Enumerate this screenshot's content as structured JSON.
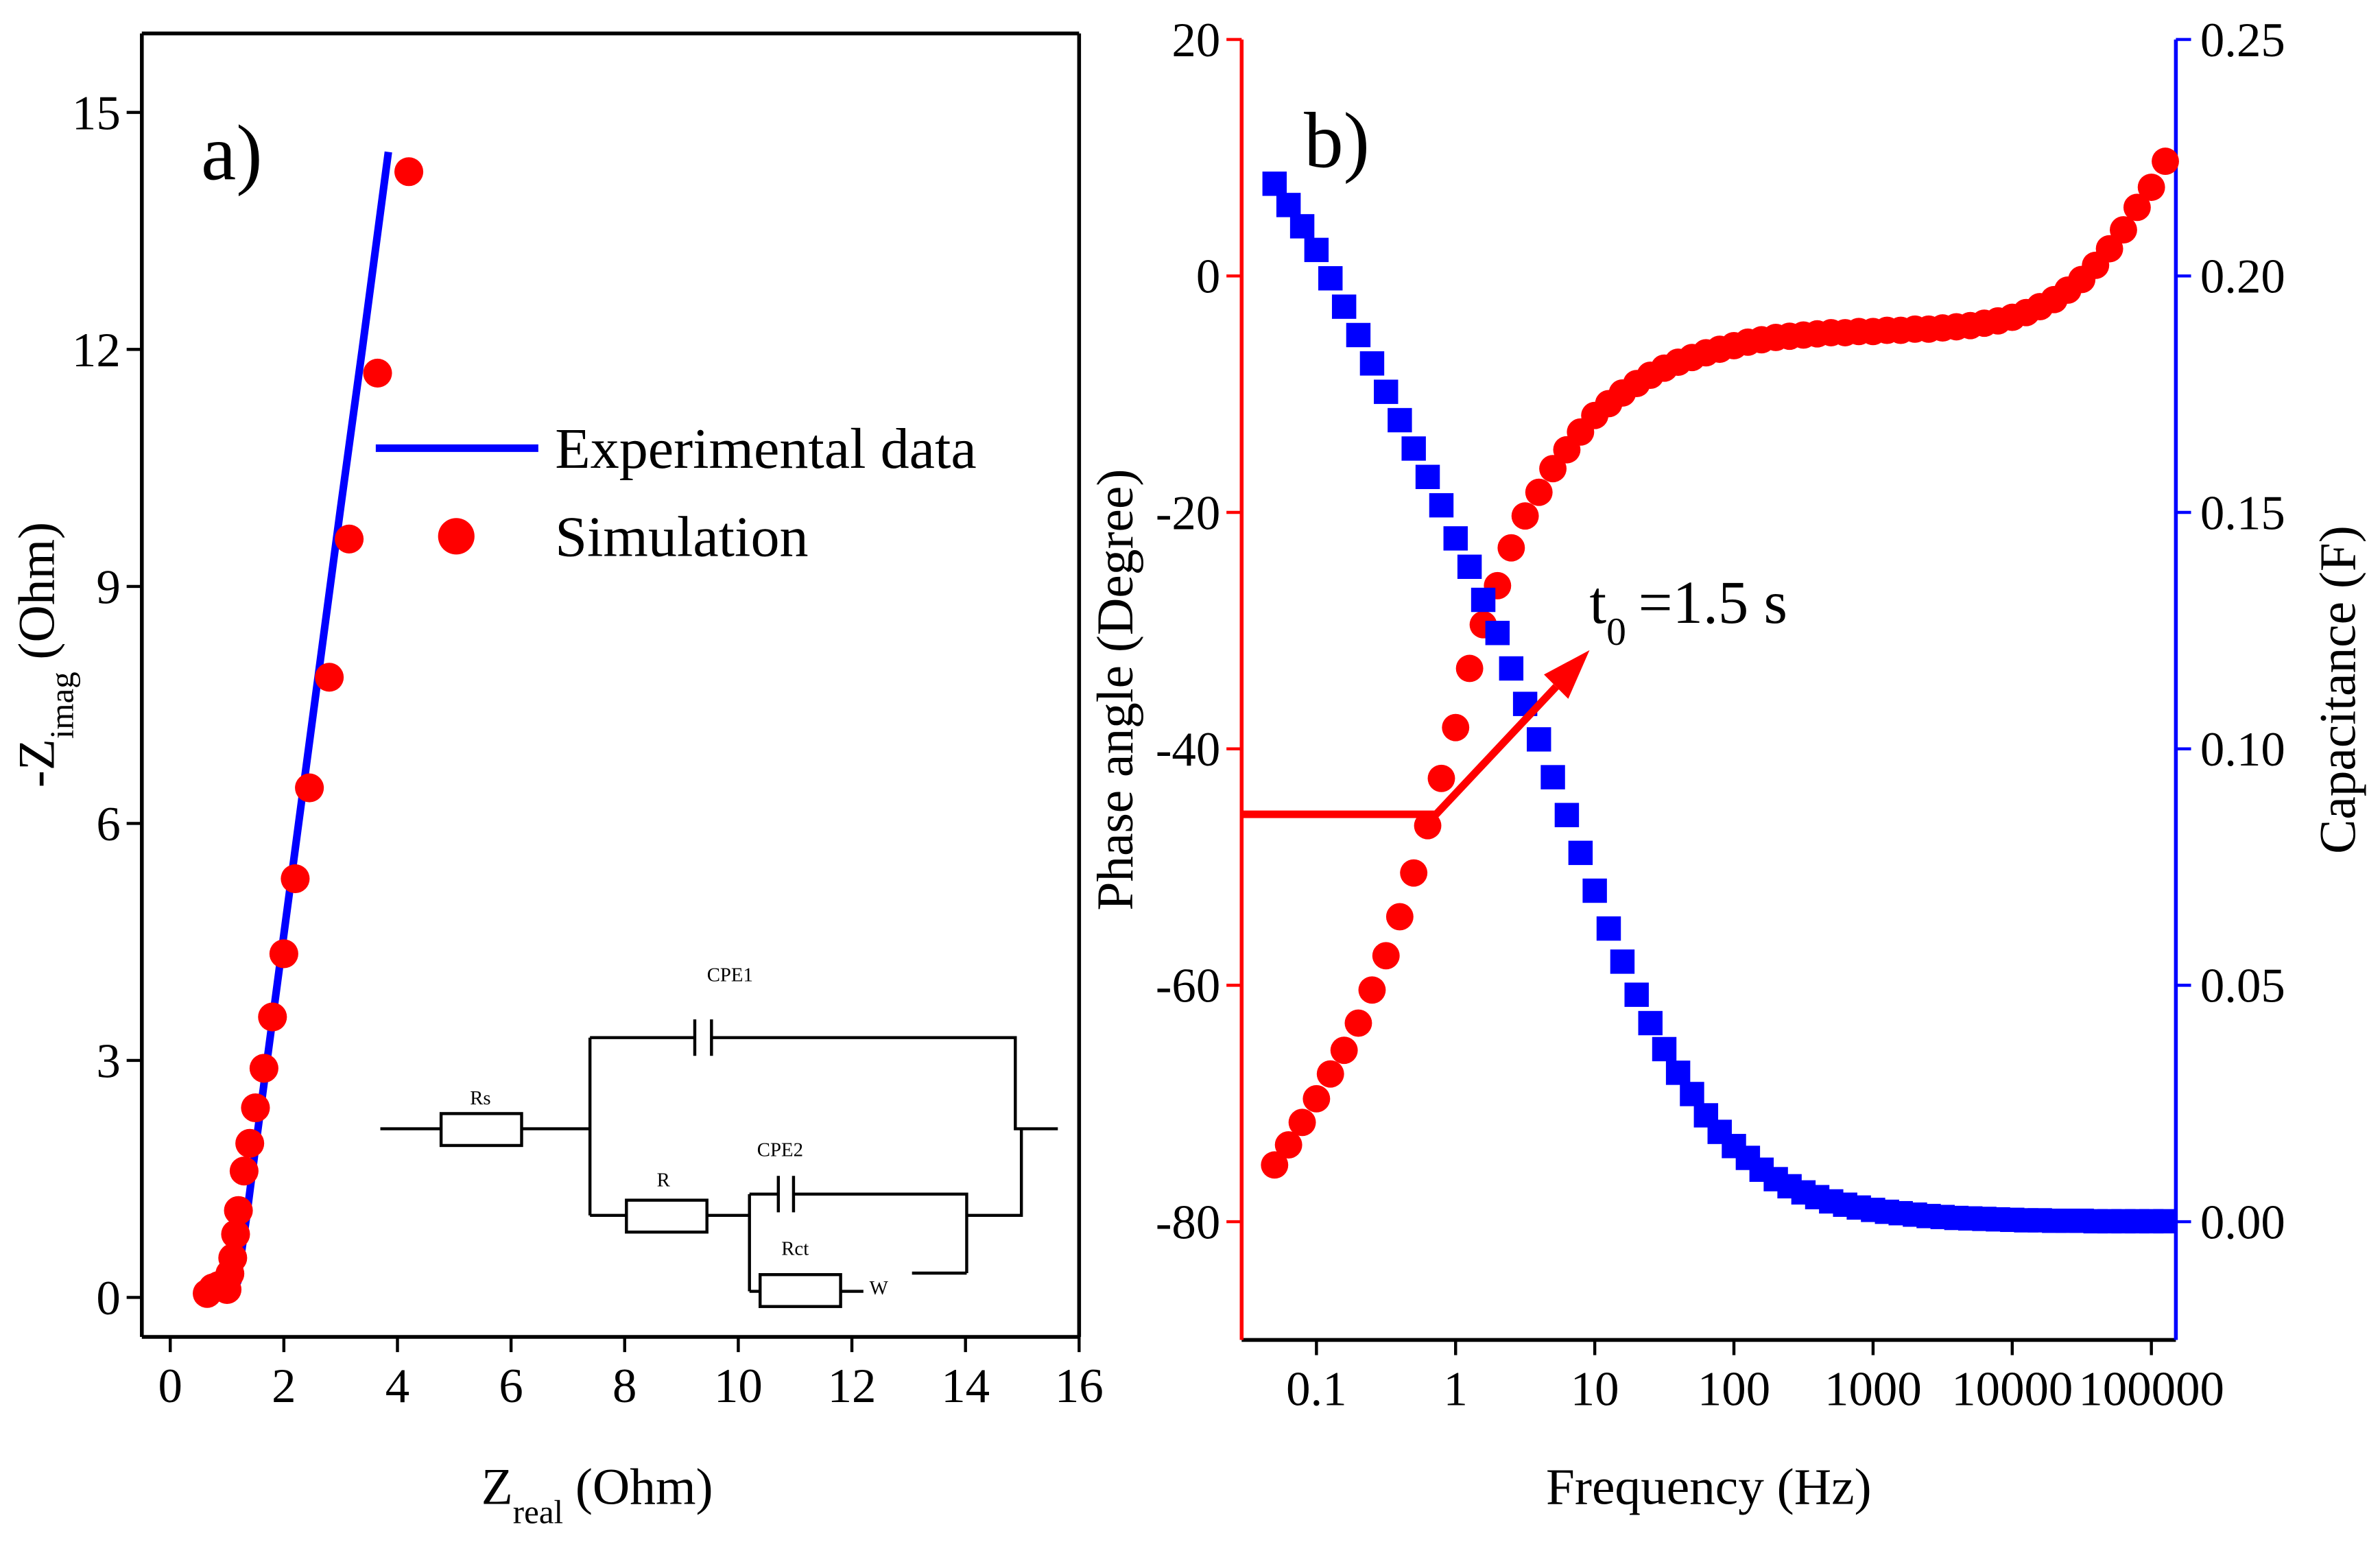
{
  "chart_data": [
    {
      "type": "scatter",
      "annotation": "a)",
      "xlabel_parts": [
        "Z",
        "real",
        "(Ohm)"
      ],
      "ylabel_parts": [
        "-Z",
        "imag",
        "(Ohm)"
      ],
      "xlim": [
        -0.5,
        16
      ],
      "ylim": [
        -0.5,
        16
      ],
      "xticks": [
        0,
        2,
        4,
        6,
        8,
        10,
        12,
        14,
        16
      ],
      "yticks": [
        0,
        3,
        6,
        9,
        12,
        15
      ],
      "frame": true,
      "legend": "upper right",
      "axis_color": "#000000",
      "series": [
        {
          "name": "Experimental data",
          "color": "#0000ff",
          "style": "line",
          "x": [
            0.65,
            0.9,
            1.1,
            1.19,
            1.24,
            1.34,
            1.52,
            1.89,
            2.26,
            2.63,
            3.0,
            3.38,
            3.84
          ],
          "values": [
            0.02,
            0.12,
            0.08,
            0.2,
            0.5,
            1,
            2,
            4,
            6,
            8,
            10,
            12,
            14.5
          ]
        },
        {
          "name": "Simulation",
          "color": "#ff0000",
          "style": "marker",
          "marker": "circle",
          "x": [
            0.65,
            0.75,
            0.85,
            1.0,
            1.05,
            1.1,
            1.15,
            1.2,
            1.3,
            1.4,
            1.5,
            1.65,
            1.8,
            2.0,
            2.2,
            2.45,
            2.8,
            3.15,
            3.65,
            4.2
          ],
          "values": [
            0.05,
            0.12,
            0.15,
            0.1,
            0.3,
            0.5,
            0.8,
            1.1,
            1.6,
            1.95,
            2.4,
            2.9,
            3.55,
            4.35,
            5.3,
            6.45,
            7.85,
            9.6,
            11.7,
            14.25
          ]
        }
      ],
      "inset_labels": [
        "CPE1",
        "Rs",
        "R",
        "CPE2",
        "Rct",
        "W"
      ]
    },
    {
      "type": "scatter",
      "annotation": "b)",
      "annotation2_parts": [
        "t",
        "0",
        "=1.5 s"
      ],
      "xlabel": "Frequency (Hz)",
      "ylabel": "Phase angle (Degree)",
      "y2label": "Capacitance (F)",
      "xscale": "log",
      "xlim": [
        0.029,
        150000
      ],
      "ylim": [
        -90,
        20
      ],
      "y2lim": [
        -0.025,
        0.25
      ],
      "xticks": [
        0.1,
        1,
        10,
        100,
        1000,
        10000,
        100000
      ],
      "yticks": [
        -80,
        -60,
        -40,
        -20,
        0,
        20
      ],
      "y2ticks": [
        {
          "value": 0,
          "label": "0.00"
        },
        {
          "value": 0.05,
          "label": "0.05"
        },
        {
          "value": 0.1,
          "label": "0.10"
        },
        {
          "value": 0.15,
          "label": "0.15"
        },
        {
          "value": 0.2,
          "label": "0.20"
        },
        {
          "value": 0.25,
          "label": "0.25"
        }
      ],
      "frame": false,
      "axis_color": "#000000",
      "y_axis_color": "#ff0000",
      "y2_axis_color": "#0000ff",
      "x": [
        0.05,
        0.063,
        0.079,
        0.1,
        0.126,
        0.158,
        0.2,
        0.251,
        0.316,
        0.397,
        0.5,
        0.63,
        0.79,
        1,
        1.26,
        1.58,
        2,
        2.51,
        3.16,
        3.97,
        5,
        6.3,
        7.9,
        10,
        12.6,
        15.8,
        20,
        25.1,
        31.6,
        39.7,
        50,
        63,
        79,
        100,
        126,
        158,
        200,
        251,
        316,
        397,
        500,
        630,
        790,
        1000,
        1260,
        1580,
        2000,
        2510,
        3160,
        3970,
        5000,
        6300,
        7900,
        10000,
        12600,
        15800,
        20000,
        25100,
        31600,
        39700,
        50000,
        63000,
        79000,
        100000,
        126000
      ],
      "series": [
        {
          "color": "#ff0000",
          "marker": "circle",
          "values": [
            -75.2,
            -73.5,
            -71.6,
            -69.6,
            -67.5,
            -65.5,
            -63.2,
            -60.4,
            -57.5,
            -54.2,
            -50.5,
            -46.5,
            -42.5,
            -38.2,
            -33.2,
            -29.5,
            -26.2,
            -23.0,
            -20.3,
            -18.3,
            -16.3,
            -14.7,
            -13.2,
            -11.8,
            -10.8,
            -9.9,
            -9.1,
            -8.4,
            -7.8,
            -7.3,
            -6.9,
            -6.5,
            -6.2,
            -5.9,
            -5.6,
            -5.4,
            -5.2,
            -5.1,
            -5.0,
            -4.9,
            -4.8,
            -4.8,
            -4.7,
            -4.7,
            -4.6,
            -4.6,
            -4.5,
            -4.5,
            -4.4,
            -4.3,
            -4.2,
            -4.0,
            -3.8,
            -3.5,
            -3.1,
            -2.6,
            -2.0,
            -1.2,
            -0.3,
            0.9,
            2.3,
            3.9,
            5.8,
            7.5,
            9.7
          ]
        },
        {
          "color": "#0000ff",
          "marker": "square",
          "axis": "y2",
          "values": [
            0.2195,
            0.215,
            0.2105,
            0.2055,
            0.1995,
            0.1935,
            0.1875,
            0.1815,
            0.1755,
            0.1695,
            0.1635,
            0.1575,
            0.1515,
            0.1445,
            0.1385,
            0.1315,
            0.1245,
            0.117,
            0.1095,
            0.102,
            0.094,
            0.086,
            0.078,
            0.07,
            0.062,
            0.055,
            0.048,
            0.042,
            0.0365,
            0.0315,
            0.027,
            0.0225,
            0.019,
            0.016,
            0.0135,
            0.011,
            0.009,
            0.0075,
            0.0062,
            0.0052,
            0.0043,
            0.0036,
            0.003,
            0.0025,
            0.0021,
            0.0018,
            0.0015,
            0.0012,
            0.001,
            0.0008,
            0.0007,
            0.0006,
            0.0005,
            0.0004,
            0.0003,
            0.0003,
            0.0002,
            0.0002,
            0.0002,
            0.0001,
            0.0001,
            0.0001,
            0.0001,
            0.0001,
            0.0001
          ]
        }
      ]
    }
  ]
}
